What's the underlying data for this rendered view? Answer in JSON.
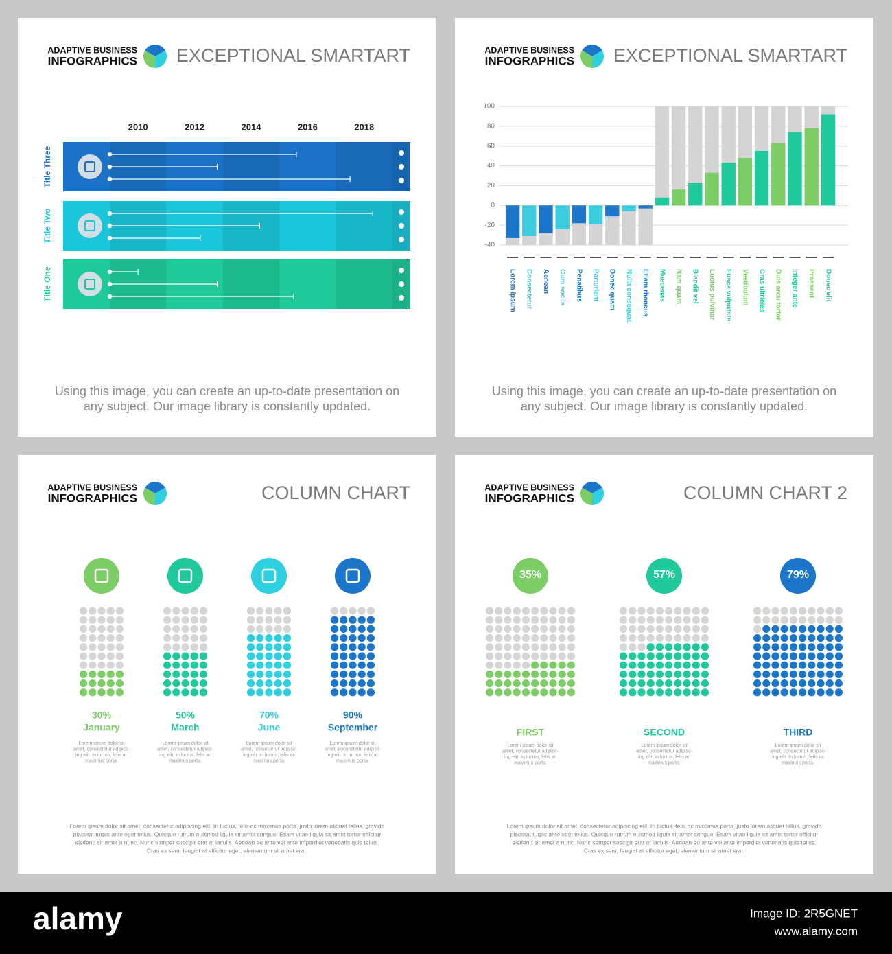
{
  "chart_data": [
    {
      "type": "timeline",
      "brand": [
        "ADAPTIVE BUSINESS",
        "INFOGRAPHICS"
      ],
      "title": "EXCEPTIONAL SMARTART",
      "xlim": [
        2009,
        2019
      ],
      "xticks": [
        2010,
        2012,
        2014,
        2016,
        2018
      ],
      "series": [
        {
          "name": "Title Three",
          "color": "#1b72c6",
          "values": [
            2015.6,
            2012.8,
            2017.5
          ]
        },
        {
          "name": "Title Two",
          "color": "#1cc6da",
          "values": [
            2018.3,
            2014.3,
            2012.2
          ]
        },
        {
          "name": "Title One",
          "color": "#1fc99a",
          "values": [
            2010,
            2012.8,
            2015.5
          ]
        }
      ],
      "caption": [
        "Using this image, you can create an up-to-date presentation on",
        "any subject. Our image library is constantly updated."
      ]
    },
    {
      "type": "bar",
      "brand": [
        "ADAPTIVE BUSINESS",
        "INFOGRAPHICS"
      ],
      "title": "EXCEPTIONAL SMARTART",
      "categories": [
        "Lorem ipsum",
        "Consectetur",
        "Aenean",
        "Cum sociis",
        "Penatibus",
        "Parturient",
        "Donec quam",
        "Nulla consequat",
        "Etiam rhoncus",
        "Maecenas",
        "Nam quam",
        "Blandit vel",
        "Luctus pulvinar",
        "Fusce vulputate",
        "Vestibulum",
        "Cras ultricies",
        "Duis arcu tortor",
        "Integer ante",
        "Praesent",
        "Donec elit"
      ],
      "values": [
        -33,
        -31,
        -28,
        -24,
        -18,
        -19,
        -11,
        -6,
        -3,
        8,
        16,
        23,
        33,
        43,
        48,
        55,
        63,
        74,
        78,
        92
      ],
      "colors": [
        "#1b75c9",
        "#3ccde0",
        "#1b75c9",
        "#3ccde0",
        "#1b75c9",
        "#3ccde0",
        "#1b75c9",
        "#3ccde0",
        "#1b75c9",
        "#1fc99c",
        "#7ccd66",
        "#1fc99c",
        "#7ccd66",
        "#1fc99c",
        "#7ccd66",
        "#1fc99c",
        "#7ccd66",
        "#1fc99c",
        "#7ccd66",
        "#1fc99c"
      ],
      "ylim": [
        -40,
        100
      ],
      "yticks": [
        -40,
        -20,
        0,
        20,
        40,
        60,
        80,
        100
      ],
      "grid": true,
      "caption": [
        "Using this image, you can create an up-to-date presentation on",
        "any subject. Our image library is constantly updated."
      ]
    },
    {
      "type": "waffle",
      "brand": [
        "ADAPTIVE BUSINESS",
        "INFOGRAPHICS"
      ],
      "title": "COLUMN CHART",
      "categories": [
        "January",
        "March",
        "June",
        "September"
      ],
      "values": [
        30,
        50,
        70,
        90
      ],
      "value_labels": [
        "30%",
        "50%",
        "70%",
        "90%"
      ],
      "colors": [
        "#7ccd66",
        "#1fc99c",
        "#2dcfe0",
        "#1b75c9"
      ],
      "notes": [
        [
          "Lorem ipsum dolor sit",
          "amet, consectetur adipisc-",
          "ing elit. In luctus, felis ac",
          "maximus porta."
        ],
        [
          "Lorem ipsum dolor sit",
          "amet, consectetur adipisc-",
          "ing elit. In luctus, felis ac",
          "maximus porta."
        ],
        [
          "Lorem ipsum dolor sit",
          "amet, consectetur adipisc-",
          "ing elit. In luctus, felis ac",
          "maximus porta."
        ],
        [
          "Lorem ipsum dolor sit",
          "amet, consectetur adipisc-",
          "ing elit. In luctus, felis ac",
          "maximus porta."
        ]
      ],
      "paragraph": [
        "Lorem ipsum dolor sit amet, consectetur adipiscing elit. In luctus, felis ac maximus porta, justo lorem aliquet tellus, gravida",
        "placerat turpis ante eget tellus. Quisque rutrum euismod ligula sit amet congue. Etiam vitae ligula sit amet tortor efficitur",
        "eleifend sit amet a nunc. Nunc semper suscipit erat at iaculis. Aenean eu ante vel ante imperdiet venenatis quis tellus.",
        "Cras ex sem, feugiat at efficitur eget, elementum sit amet erat."
      ]
    },
    {
      "type": "waffle",
      "brand": [
        "ADAPTIVE BUSINESS",
        "INFOGRAPHICS"
      ],
      "title": "COLUMN CHART 2",
      "categories": [
        "FIRST",
        "SECOND",
        "THIRD"
      ],
      "values": [
        35,
        57,
        79
      ],
      "value_labels": [
        "35%",
        "57%",
        "79%"
      ],
      "colors": [
        "#7ccd66",
        "#1fc99c",
        "#1b75c9"
      ],
      "notes": [
        [
          "Lorem ipsum dolor sit",
          "amet, consectetur adipisc-",
          "ing elit. In luctus, felis ac",
          "maximus porta."
        ],
        [
          "Lorem ipsum dolor sit",
          "amet, consectetur adipisc-",
          "ing elit. In luctus, felis ac",
          "maximus porta."
        ],
        [
          "Lorem ipsum dolor sit",
          "amet, consectetur adipisc-",
          "ing elit. In luctus, felis ac",
          "maximus porta."
        ]
      ],
      "paragraph": [
        "Lorem ipsum dolor sit amet, consectetur adipiscing elit. In luctus, felis ac maximus porta, justo lorem aliquet tellus, gravida",
        "placerat turpis ante eget tellus. Quisque rutrum euismod ligula sit amet congue. Etiam vitae ligula sit amet tortor efficitur",
        "eleifend sit amet a nunc. Nunc semper suscipit erat at iaculis. Aenean eu ante vel ante imperdiet venenatis quis tellus.",
        "Cras ex sem, feugiat at efficitur eget, elementum sit amet erat."
      ]
    }
  ],
  "footer": {
    "logo": "alamy",
    "image_id": "Image ID: 2R5GNET",
    "url": "www.alamy.com"
  }
}
